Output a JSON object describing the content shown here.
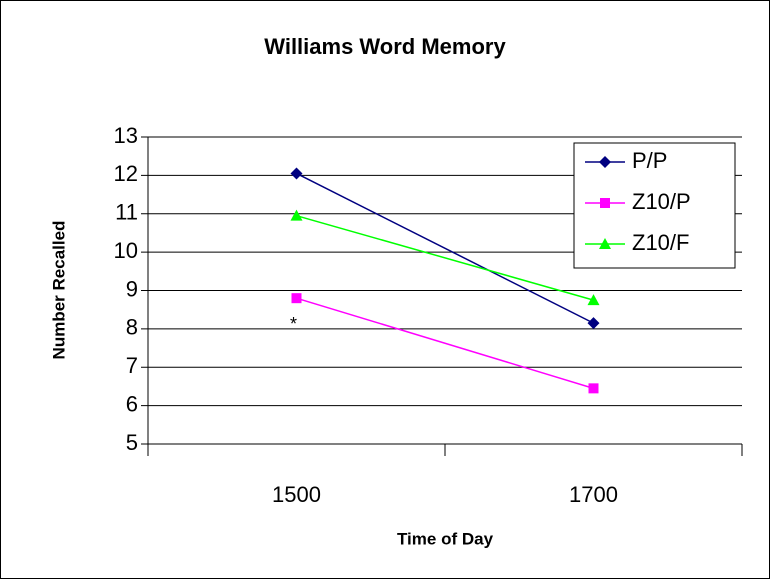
{
  "chart_data": {
    "type": "line",
    "title": "Williams Word Memory",
    "x_label": "Time of Day",
    "y_label": "Number Recalled",
    "categories": [
      "1500",
      "1700"
    ],
    "series": [
      {
        "name": "P/P",
        "color": "#000080",
        "marker": "diamond",
        "values": [
          12.05,
          8.15
        ]
      },
      {
        "name": "Z10/P",
        "color": "#ff00ff",
        "marker": "square",
        "values": [
          8.8,
          6.45
        ]
      },
      {
        "name": "Z10/F",
        "color": "#00ff00",
        "marker": "triangle",
        "values": [
          10.95,
          8.75
        ]
      }
    ],
    "annotation": "*",
    "ylim": [
      5,
      13
    ],
    "yticks": [
      5,
      6,
      7,
      8,
      9,
      10,
      11,
      12,
      13
    ],
    "grid": true,
    "legend": "top-right"
  }
}
